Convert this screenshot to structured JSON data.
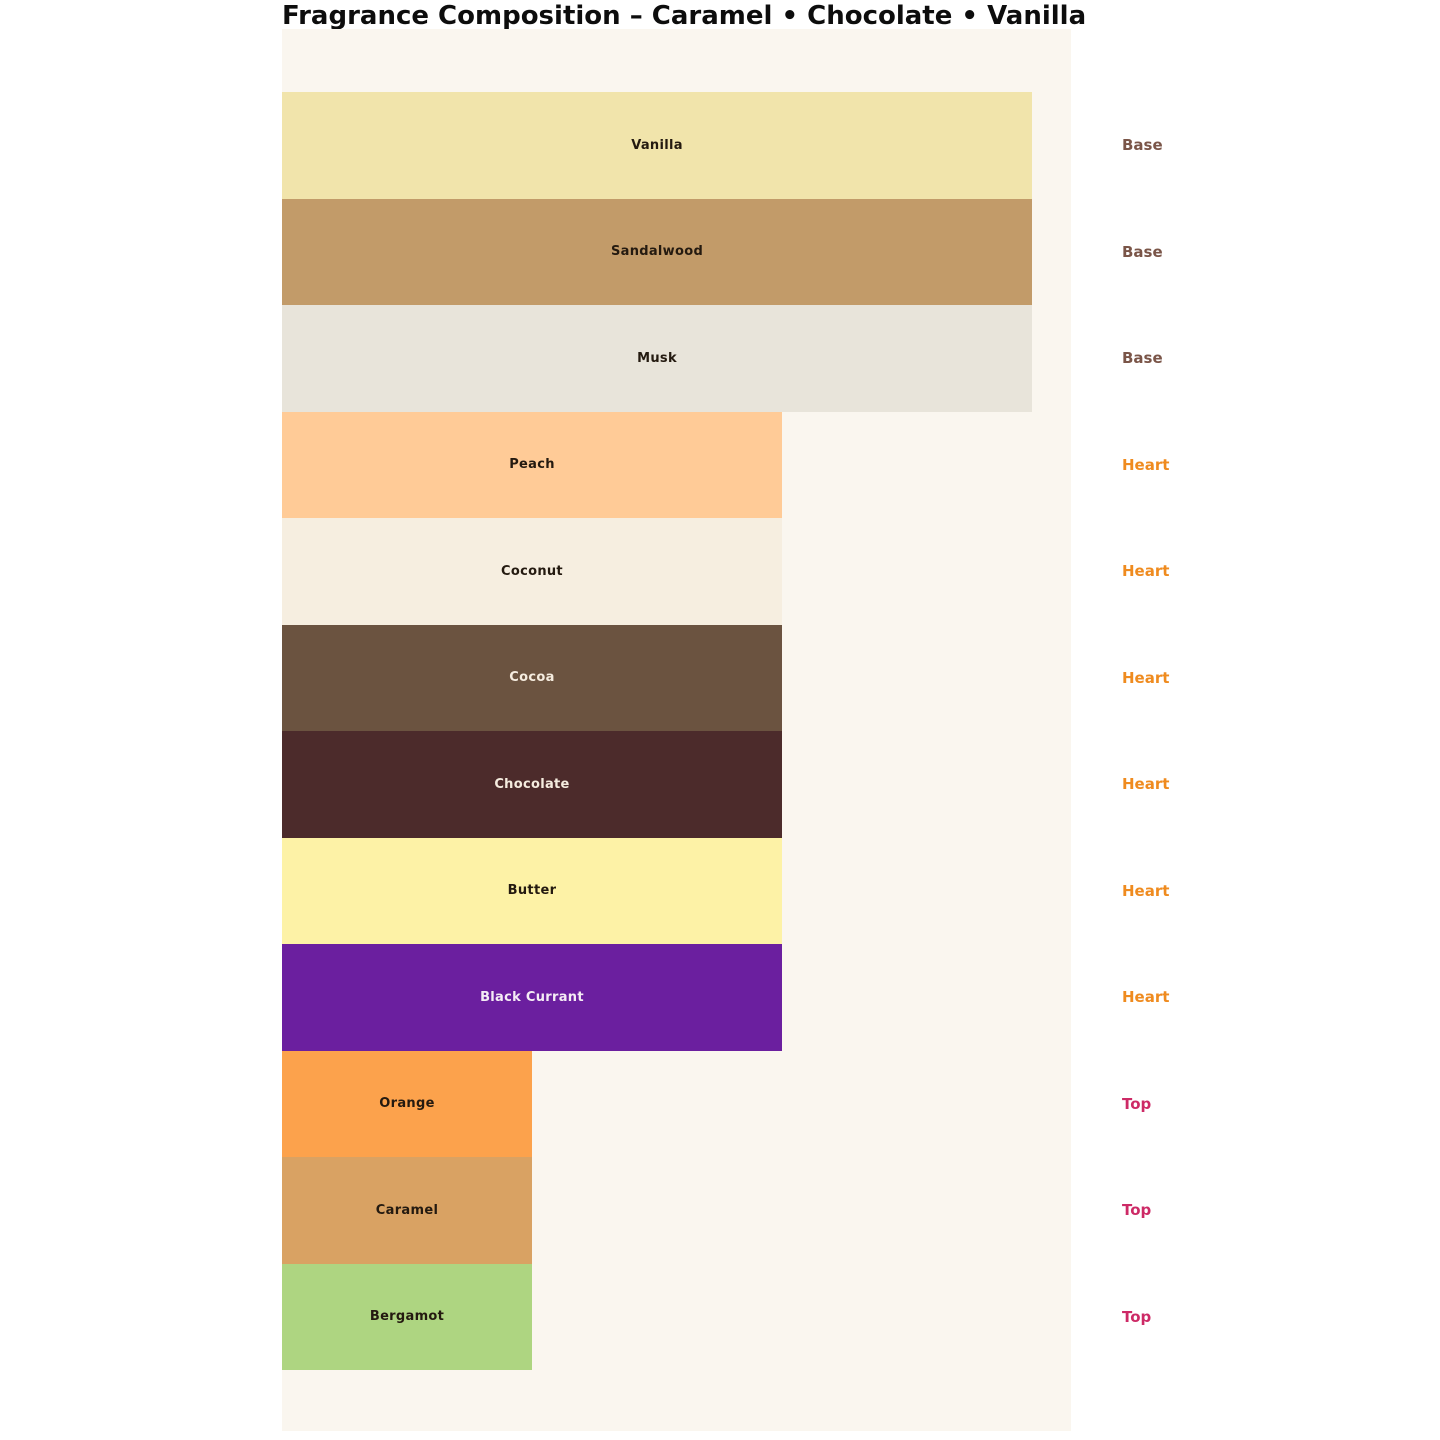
{
  "title": "Fragrance Composition – Caramel • Chocolate • Vanilla",
  "panel_color": "#faf6ef",
  "phase_colors": {
    "Base": "#7a5548",
    "Heart": "#ef8b1f",
    "Top": "#cd2a66"
  },
  "bars": [
    {
      "label": "Vanilla",
      "phase": "Base",
      "color": "#f1e4ab",
      "label_color": "#241a10",
      "width_pct": 95.06
    },
    {
      "label": "Sandalwood",
      "phase": "Base",
      "color": "#c29b69",
      "label_color": "#241a10",
      "width_pct": 95.06
    },
    {
      "label": "Musk",
      "phase": "Base",
      "color": "#e8e4da",
      "label_color": "#241a10",
      "width_pct": 95.06
    },
    {
      "label": "Peach",
      "phase": "Heart",
      "color": "#ffcb97",
      "label_color": "#241a10",
      "width_pct": 63.37
    },
    {
      "label": "Coconut",
      "phase": "Heart",
      "color": "#f6eee0",
      "label_color": "#241a10",
      "width_pct": 63.37
    },
    {
      "label": "Cocoa",
      "phase": "Heart",
      "color": "#6b5340",
      "label_color": "#f5ecdf",
      "width_pct": 63.37
    },
    {
      "label": "Chocolate",
      "phase": "Heart",
      "color": "#4c2b2b",
      "label_color": "#f5ecdf",
      "width_pct": 63.37
    },
    {
      "label": "Butter",
      "phase": "Heart",
      "color": "#fdf2a6",
      "label_color": "#241a10",
      "width_pct": 63.37
    },
    {
      "label": "Black Currant",
      "phase": "Heart",
      "color": "#6b1f9f",
      "label_color": "#f5ecf5",
      "width_pct": 63.37
    },
    {
      "label": "Orange",
      "phase": "Top",
      "color": "#fca24c",
      "label_color": "#241a10",
      "width_pct": 31.69
    },
    {
      "label": "Caramel",
      "phase": "Top",
      "color": "#d9a263",
      "label_color": "#241a10",
      "width_pct": 31.69
    },
    {
      "label": "Bergamot",
      "phase": "Top",
      "color": "#aed581",
      "label_color": "#241a10",
      "width_pct": 31.69
    }
  ],
  "chart_data": {
    "type": "bar",
    "orientation": "horizontal",
    "title": "Fragrance Composition – Caramel • Chocolate • Vanilla",
    "categories": [
      "Vanilla",
      "Sandalwood",
      "Musk",
      "Peach",
      "Coconut",
      "Cocoa",
      "Chocolate",
      "Butter",
      "Black Currant",
      "Orange",
      "Caramel",
      "Bergamot"
    ],
    "values": [
      3,
      3,
      3,
      2,
      2,
      2,
      2,
      2,
      2,
      1,
      1,
      1
    ],
    "groups": [
      "Base",
      "Base",
      "Base",
      "Heart",
      "Heart",
      "Heart",
      "Heart",
      "Heart",
      "Heart",
      "Top",
      "Top",
      "Top"
    ],
    "group_label_entries": [
      "Base",
      "Heart",
      "Top"
    ],
    "xlabel": "",
    "ylabel": "",
    "xlim": [
      0,
      3.16
    ],
    "grid": false,
    "axes_visible": false,
    "legend": false,
    "annotation_position": "right-of-plot"
  }
}
